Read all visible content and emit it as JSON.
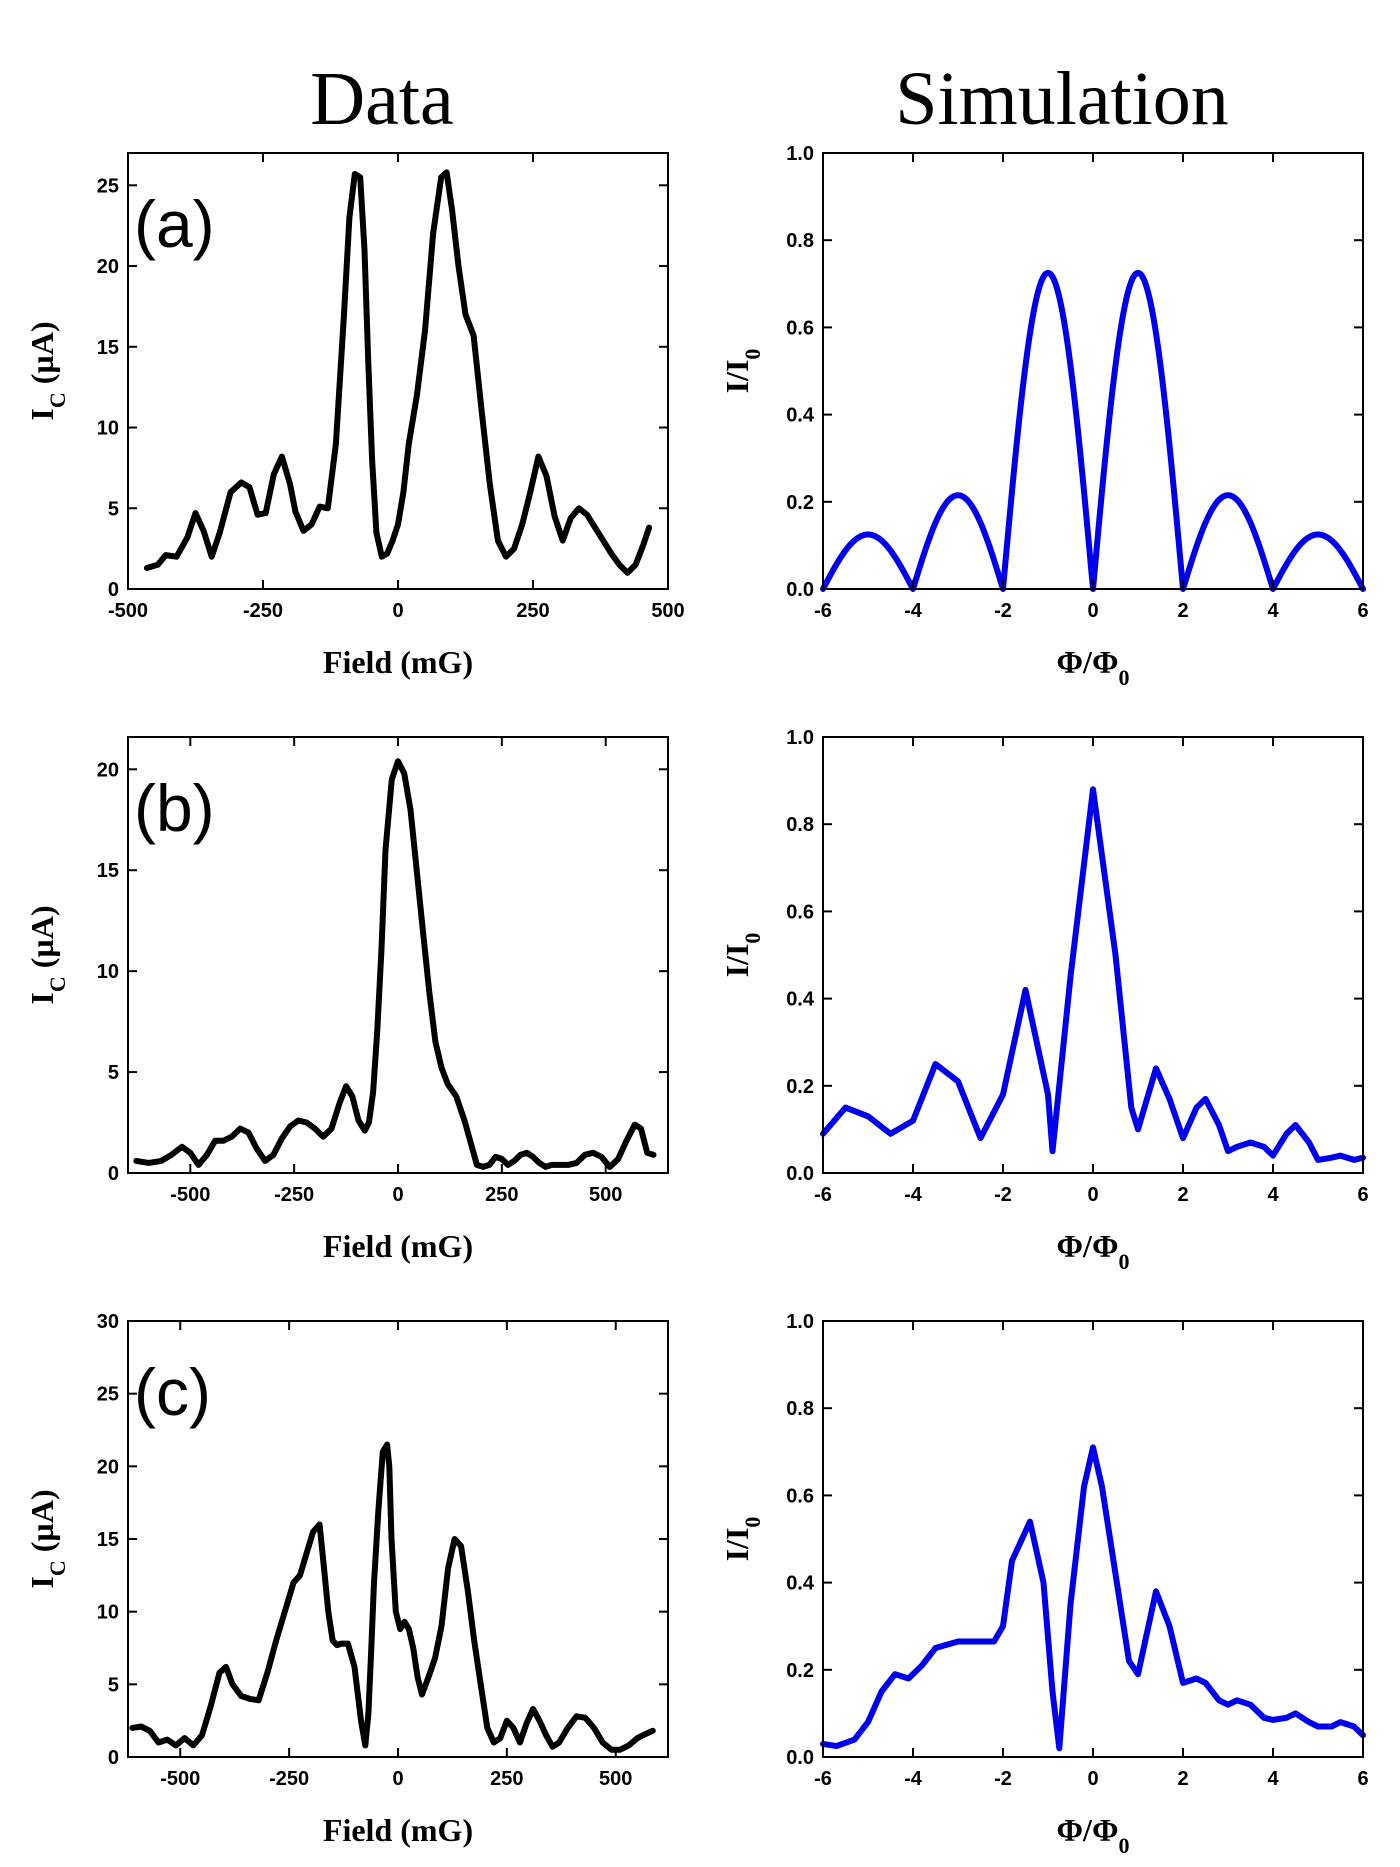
{
  "columns": {
    "data_title": "Data",
    "sim_title": "Simulation"
  },
  "chart_data": [
    {
      "id": "a-data",
      "type": "line",
      "panel_label": "(a)",
      "xlabel": "Field (mG)",
      "ylabel_main": "I",
      "ylabel_sub": "C",
      "ylabel_tail": " (µA)",
      "xlim": [
        -500,
        500
      ],
      "ylim": [
        0,
        27
      ],
      "xticks": [
        -500,
        -250,
        0,
        250,
        500
      ],
      "yticks": [
        0,
        5,
        10,
        15,
        20,
        25
      ],
      "color": "#000000",
      "series": [
        {
          "name": "data",
          "x": [
            -465,
            -445,
            -430,
            -410,
            -390,
            -375,
            -360,
            -345,
            -330,
            -310,
            -290,
            -275,
            -260,
            -245,
            -230,
            -215,
            -200,
            -190,
            -175,
            -160,
            -145,
            -130,
            -115,
            -100,
            -90,
            -80,
            -70,
            -62,
            -55,
            -48,
            -40,
            -30,
            -20,
            -10,
            0,
            10,
            20,
            35,
            50,
            65,
            80,
            90,
            100,
            112,
            125,
            140,
            155,
            170,
            185,
            200,
            215,
            230,
            245,
            260,
            275,
            290,
            305,
            320,
            335,
            350,
            365,
            380,
            395,
            410,
            425,
            440,
            455,
            465
          ],
          "y": [
            1.3,
            1.5,
            2.1,
            2.0,
            3.2,
            4.7,
            3.6,
            2.0,
            3.5,
            6.0,
            6.6,
            6.3,
            4.6,
            4.7,
            7.1,
            8.2,
            6.5,
            4.8,
            3.6,
            4.0,
            5.1,
            5.0,
            9.0,
            17.0,
            23.0,
            25.7,
            25.5,
            21.0,
            14.0,
            8.0,
            3.5,
            2.0,
            2.2,
            3.0,
            4.0,
            6.0,
            9.0,
            12.0,
            16.0,
            22.0,
            25.5,
            25.8,
            23.5,
            20.0,
            17.0,
            15.7,
            11.0,
            6.5,
            3.0,
            2.0,
            2.5,
            4.0,
            6.0,
            8.2,
            7.0,
            4.5,
            3.0,
            4.4,
            5.0,
            4.6,
            3.8,
            3.0,
            2.2,
            1.5,
            1.0,
            1.5,
            2.8,
            3.8
          ]
        }
      ]
    },
    {
      "id": "a-sim",
      "type": "line",
      "xlabel_main": "Φ/Φ",
      "xlabel_sub": "0",
      "ylabel_main": "I/I",
      "ylabel_sub": "0",
      "xlim": [
        -6,
        6
      ],
      "ylim": [
        0,
        1
      ],
      "xticks": [
        -6,
        -4,
        -2,
        0,
        2,
        4,
        6
      ],
      "yticks": [
        0.0,
        0.2,
        0.4,
        0.6,
        0.8,
        1.0
      ],
      "color": "#0000ee",
      "series": [
        {
          "name": "simulation",
          "formula": "sinc_abs",
          "peak_y": [
            0.125,
            0.215,
            0.725,
            0.725,
            0.215,
            0.125
          ]
        }
      ]
    },
    {
      "id": "b-data",
      "type": "line",
      "panel_label": "(b)",
      "xlabel": "Field (mG)",
      "ylabel_main": "I",
      "ylabel_sub": "C",
      "ylabel_tail": " (µA)",
      "xlim": [
        -650,
        650
      ],
      "ylim": [
        0,
        21.6
      ],
      "xticks": [
        -500,
        -250,
        0,
        250,
        500
      ],
      "yticks": [
        0,
        5,
        10,
        15,
        20
      ],
      "color": "#000000",
      "series": [
        {
          "name": "data",
          "x": [
            -630,
            -600,
            -570,
            -545,
            -520,
            -500,
            -480,
            -460,
            -440,
            -420,
            -400,
            -380,
            -360,
            -340,
            -320,
            -300,
            -280,
            -260,
            -240,
            -220,
            -200,
            -180,
            -160,
            -140,
            -125,
            -110,
            -95,
            -80,
            -70,
            -60,
            -50,
            -40,
            -30,
            -15,
            0,
            15,
            30,
            45,
            60,
            75,
            90,
            105,
            120,
            140,
            160,
            175,
            190,
            205,
            220,
            235,
            250,
            265,
            280,
            295,
            310,
            325,
            340,
            355,
            370,
            390,
            410,
            430,
            450,
            470,
            490,
            510,
            530,
            550,
            570,
            585,
            600,
            615
          ],
          "y": [
            0.6,
            0.5,
            0.6,
            0.9,
            1.3,
            1.0,
            0.4,
            0.9,
            1.6,
            1.6,
            1.8,
            2.2,
            2.0,
            1.2,
            0.6,
            0.9,
            1.7,
            2.3,
            2.6,
            2.5,
            2.2,
            1.8,
            2.2,
            3.5,
            4.3,
            3.8,
            2.6,
            2.1,
            2.5,
            4.0,
            7.0,
            11.0,
            16.0,
            19.5,
            20.4,
            19.8,
            18.0,
            15.0,
            12.0,
            9.0,
            6.5,
            5.2,
            4.4,
            3.8,
            2.6,
            1.5,
            0.4,
            0.3,
            0.4,
            0.8,
            0.7,
            0.4,
            0.6,
            0.9,
            1.0,
            0.8,
            0.5,
            0.3,
            0.4,
            0.4,
            0.4,
            0.5,
            0.9,
            1.0,
            0.8,
            0.3,
            0.7,
            1.6,
            2.4,
            2.2,
            1.0,
            0.9
          ]
        }
      ]
    },
    {
      "id": "b-sim",
      "type": "line",
      "xlabel_main": "Φ/Φ",
      "xlabel_sub": "0",
      "ylabel_main": "I/I",
      "ylabel_sub": "0",
      "xlim": [
        -6,
        6
      ],
      "ylim": [
        0,
        1
      ],
      "xticks": [
        -6,
        -4,
        -2,
        0,
        2,
        4,
        6
      ],
      "yticks": [
        0.0,
        0.2,
        0.4,
        0.6,
        0.8,
        1.0
      ],
      "color": "#0000ee",
      "series": [
        {
          "name": "simulation",
          "x": [
            -6,
            -5.5,
            -5,
            -4.5,
            -4,
            -3.5,
            -3,
            -2.5,
            -2,
            -1.5,
            -1,
            -0.9,
            -0.5,
            0,
            0.5,
            0.85,
            1,
            1.4,
            1.7,
            2,
            2.3,
            2.5,
            2.8,
            3,
            3.2,
            3.5,
            3.8,
            4,
            4.3,
            4.5,
            4.8,
            5,
            5.3,
            5.5,
            5.8,
            6
          ],
          "y": [
            0.09,
            0.15,
            0.13,
            0.09,
            0.12,
            0.25,
            0.21,
            0.08,
            0.18,
            0.42,
            0.18,
            0.05,
            0.45,
            0.88,
            0.5,
            0.15,
            0.1,
            0.24,
            0.17,
            0.08,
            0.15,
            0.17,
            0.11,
            0.05,
            0.06,
            0.07,
            0.06,
            0.04,
            0.09,
            0.11,
            0.07,
            0.03,
            0.035,
            0.04,
            0.03,
            0.035
          ]
        }
      ]
    },
    {
      "id": "c-data",
      "type": "line",
      "panel_label": "(c)",
      "xlabel": "Field (mG)",
      "ylabel_main": "I",
      "ylabel_sub": "C",
      "ylabel_tail": " (µA)",
      "xlim": [
        -620,
        620
      ],
      "ylim": [
        0,
        30
      ],
      "xticks": [
        -500,
        -250,
        0,
        250,
        500
      ],
      "yticks": [
        0,
        5,
        10,
        15,
        20,
        25,
        30
      ],
      "color": "#000000",
      "series": [
        {
          "name": "data",
          "x": [
            -610,
            -590,
            -570,
            -550,
            -530,
            -510,
            -490,
            -470,
            -450,
            -430,
            -410,
            -395,
            -380,
            -360,
            -340,
            -320,
            -300,
            -280,
            -260,
            -240,
            -225,
            -210,
            -195,
            -180,
            -170,
            -160,
            -150,
            -140,
            -130,
            -115,
            -100,
            -85,
            -75,
            -68,
            -62,
            -55,
            -45,
            -35,
            -25,
            -20,
            -15,
            -5,
            5,
            15,
            25,
            35,
            45,
            55,
            70,
            85,
            100,
            115,
            130,
            145,
            160,
            175,
            190,
            205,
            220,
            235,
            250,
            265,
            280,
            295,
            310,
            325,
            340,
            355,
            370,
            390,
            410,
            430,
            450,
            470,
            490,
            510,
            530,
            550,
            570,
            585
          ],
          "y": [
            2.0,
            2.1,
            1.8,
            1.0,
            1.2,
            0.8,
            1.3,
            0.8,
            1.5,
            3.5,
            5.8,
            6.2,
            5.0,
            4.2,
            4.0,
            3.9,
            5.8,
            8.0,
            10.0,
            12.0,
            12.5,
            14.0,
            15.5,
            16.0,
            13.0,
            10.0,
            8.0,
            7.7,
            7.8,
            7.8,
            6.2,
            2.5,
            0.8,
            3.0,
            7.0,
            12.0,
            17.0,
            21.0,
            21.5,
            20.0,
            15.0,
            10.0,
            8.8,
            9.3,
            8.8,
            7.5,
            5.5,
            4.3,
            5.5,
            6.8,
            9.0,
            13.0,
            15.0,
            14.5,
            11.5,
            8.0,
            5.0,
            2.0,
            1.0,
            1.3,
            2.5,
            2.0,
            1.0,
            2.3,
            3.3,
            2.5,
            1.5,
            0.7,
            1.0,
            2.0,
            2.8,
            2.7,
            2.0,
            1.0,
            0.5,
            0.5,
            0.8,
            1.3,
            1.6,
            1.8
          ]
        }
      ]
    },
    {
      "id": "c-sim",
      "type": "line",
      "xlabel_main": "Φ/Φ",
      "xlabel_sub": "0",
      "ylabel_main": "I/I",
      "ylabel_sub": "0",
      "xlim": [
        -6,
        6
      ],
      "ylim": [
        0,
        1
      ],
      "xticks": [
        -6,
        -4,
        -2,
        0,
        2,
        4,
        6
      ],
      "yticks": [
        0.0,
        0.2,
        0.4,
        0.6,
        0.8,
        1.0
      ],
      "color": "#0000ee",
      "series": [
        {
          "name": "simulation",
          "x": [
            -6,
            -5.7,
            -5.3,
            -5,
            -4.7,
            -4.4,
            -4.1,
            -3.8,
            -3.5,
            -3,
            -2.5,
            -2.2,
            -2,
            -1.8,
            -1.4,
            -1.1,
            -0.9,
            -0.75,
            -0.5,
            -0.2,
            0,
            0.2,
            0.5,
            0.8,
            1,
            1.4,
            1.7,
            2,
            2.3,
            2.5,
            2.8,
            3,
            3.2,
            3.5,
            3.8,
            4,
            4.3,
            4.5,
            4.8,
            5,
            5.3,
            5.5,
            5.8,
            6
          ],
          "y": [
            0.03,
            0.025,
            0.04,
            0.08,
            0.15,
            0.19,
            0.18,
            0.21,
            0.25,
            0.265,
            0.265,
            0.265,
            0.3,
            0.45,
            0.54,
            0.4,
            0.15,
            0.02,
            0.35,
            0.62,
            0.71,
            0.62,
            0.42,
            0.22,
            0.19,
            0.38,
            0.3,
            0.17,
            0.18,
            0.17,
            0.13,
            0.12,
            0.13,
            0.12,
            0.09,
            0.085,
            0.09,
            0.1,
            0.08,
            0.07,
            0.07,
            0.08,
            0.07,
            0.05
          ]
        }
      ]
    }
  ]
}
